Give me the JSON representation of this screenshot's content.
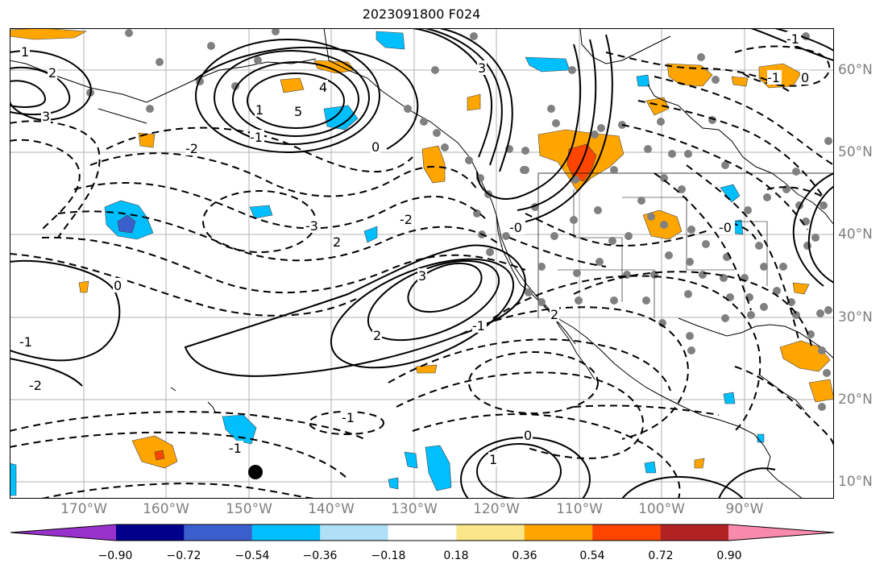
{
  "title": "2023091800 F024",
  "lon_ticks": [
    "170°W",
    "160°W",
    "150°W",
    "140°W",
    "130°W",
    "120°W",
    "110°W",
    "100°W",
    "90°W"
  ],
  "lat_ticks": [
    "60°N",
    "50°N",
    "40°N",
    "30°N",
    "20°N",
    "10°N"
  ],
  "colorbar": {
    "tick_labels": [
      "−0.90",
      "−0.72",
      "−0.54",
      "−0.36",
      "−0.18",
      "0.18",
      "0.36",
      "0.54",
      "0.72",
      "0.90"
    ],
    "colors": [
      "#9932cc",
      "#00008b",
      "#3a5fcd",
      "#00bfff",
      "#b0e0f6",
      "#ffffff",
      "#fbe78a",
      "#ffa500",
      "#ff4500",
      "#b22222",
      "#f88bab"
    ],
    "extend": "both"
  },
  "contour_labels": [
    {
      "text": "1"
    },
    {
      "text": "2"
    },
    {
      "text": "3"
    },
    {
      "text": "4"
    },
    {
      "text": "5"
    },
    {
      "text": "0"
    },
    {
      "text": "-1"
    },
    {
      "text": "-2"
    },
    {
      "text": "-3"
    },
    {
      "text": "1"
    },
    {
      "text": "2"
    },
    {
      "text": "3"
    },
    {
      "text": "0"
    },
    {
      "text": "-0"
    },
    {
      "text": "-2"
    },
    {
      "text": "-1"
    },
    {
      "text": "-1"
    },
    {
      "text": "0"
    },
    {
      "text": "-1"
    },
    {
      "text": "1"
    },
    {
      "text": "2"
    },
    {
      "text": "-2"
    },
    {
      "text": "-1"
    },
    {
      "text": "-1"
    },
    {
      "text": "0"
    },
    {
      "text": "-0"
    },
    {
      "text": "3"
    },
    {
      "text": "2"
    },
    {
      "text": "-1"
    }
  ],
  "marker": {
    "label": "storm-center"
  }
}
